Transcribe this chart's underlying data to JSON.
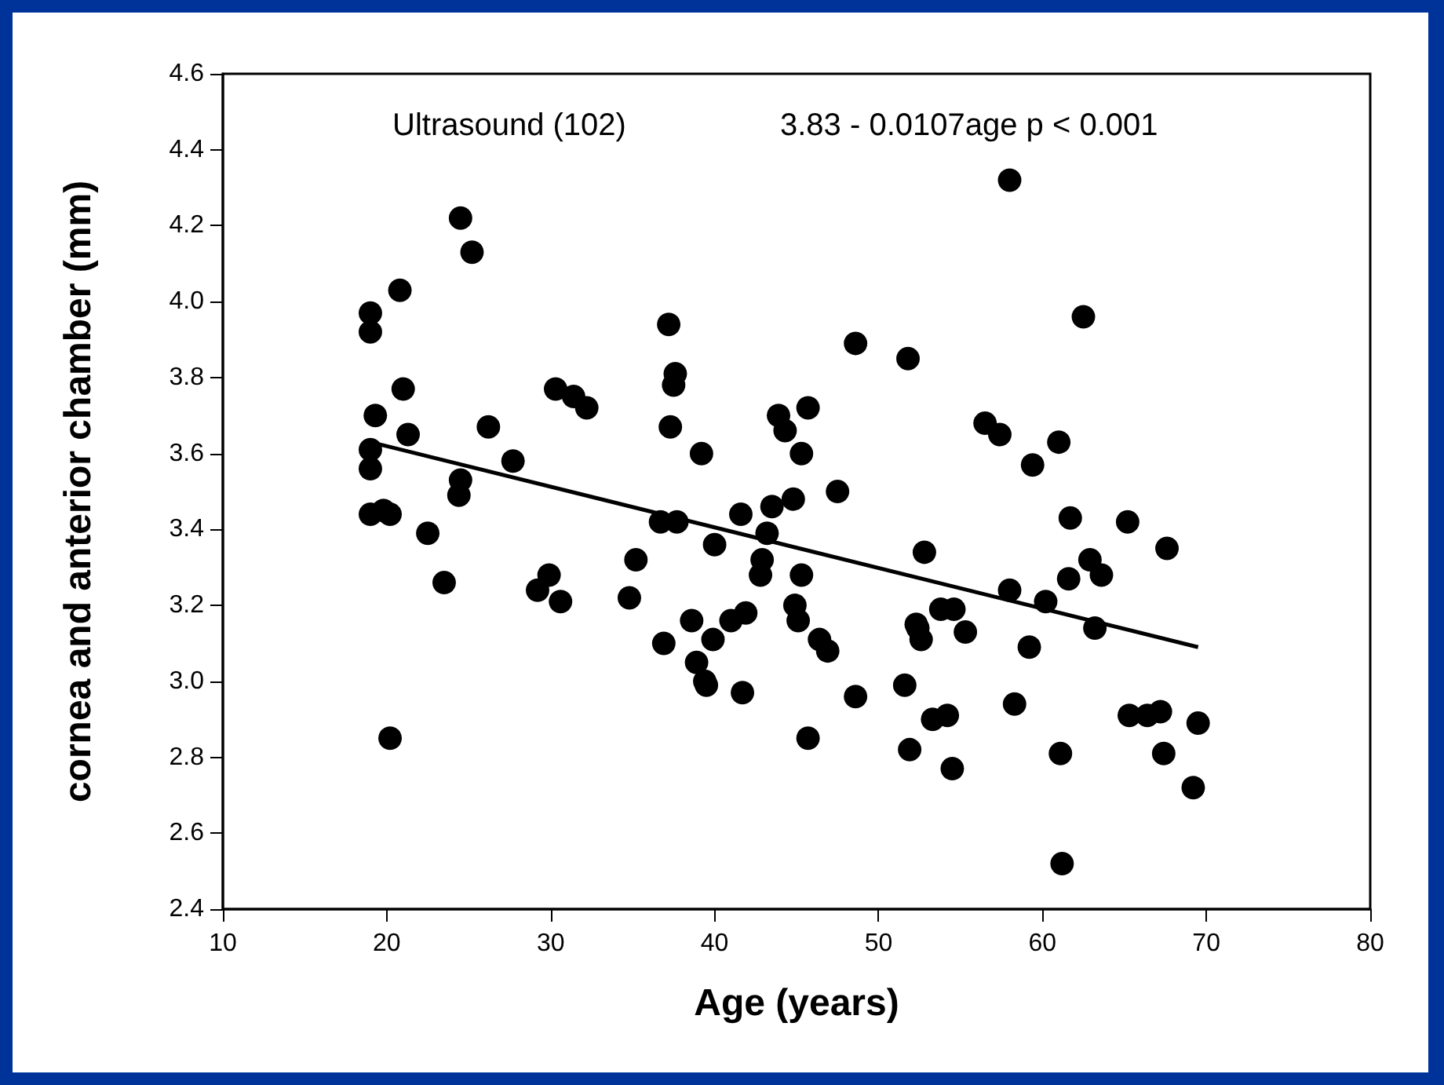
{
  "chart_data": {
    "type": "scatter",
    "xlabel": "Age (years)",
    "ylabel": "cornea and anterior chamber (mm)",
    "annotations": [
      "Ultrasound (102)",
      "3.83 - 0.0107age p < 0.001"
    ],
    "xlim": [
      10,
      80
    ],
    "xticks": [
      10,
      20,
      30,
      40,
      50,
      60,
      70,
      80
    ],
    "ylim": [
      2.4,
      4.6
    ],
    "yticks": [
      2.4,
      2.6,
      2.8,
      {
        "value": 3,
        "label": "3.0"
      },
      3.2,
      3.4,
      3.6,
      3.8,
      {
        "value": 4,
        "label": "4.0"
      },
      4.2,
      4.4,
      4.6
    ],
    "grid": false,
    "marker": "circle",
    "series": [
      {
        "color": "#000000",
        "x": [
          19,
          19,
          19,
          19,
          19,
          19.3,
          19.8,
          20.2,
          20.2,
          20.8,
          21,
          21.3,
          22.5,
          23.5,
          24.5,
          24.5,
          24.4,
          25.2,
          26.2,
          27.7,
          29.2,
          29.9,
          30.3,
          30.6,
          31.4,
          32.2,
          34.8,
          35.2,
          36.7,
          36.9,
          37.2,
          37.3,
          37.5,
          37.6,
          37.7,
          38.6,
          38.9,
          39.2,
          39.4,
          39.5,
          39.9,
          40,
          41,
          41.6,
          41.7,
          41.9,
          42.8,
          42.9,
          43.2,
          43.5,
          43.9,
          44.3,
          44.8,
          44.9,
          45.1,
          45.3,
          45.3,
          45.7,
          45.7,
          46.4,
          46.9,
          47.5,
          48.6,
          48.6,
          51.6,
          51.8,
          51.9,
          52.3,
          52.4,
          52.6,
          52.8,
          53.3,
          53.8,
          54.2,
          54.5,
          54.6,
          55.3,
          56.5,
          57.4,
          58,
          58.3,
          58,
          59.2,
          59.4,
          60.2,
          61,
          61.1,
          61.2,
          61.6,
          61.7,
          62.5,
          62.9,
          63.2,
          63.6,
          65.2,
          65.3,
          66.4,
          67.2,
          67.4,
          67.6,
          69.2,
          69.5
        ],
        "values": [
          3.97,
          3.92,
          3.61,
          3.56,
          3.44,
          3.7,
          3.45,
          3.44,
          2.85,
          4.03,
          3.77,
          3.65,
          3.39,
          3.26,
          4.22,
          3.53,
          3.49,
          4.13,
          3.67,
          3.58,
          3.24,
          3.28,
          3.77,
          3.21,
          3.75,
          3.72,
          3.22,
          3.32,
          3.42,
          3.1,
          3.94,
          3.67,
          3.78,
          3.81,
          3.42,
          3.16,
          3.05,
          3.6,
          3.0,
          2.99,
          3.11,
          3.36,
          3.16,
          3.44,
          2.97,
          3.18,
          3.28,
          3.32,
          3.39,
          3.46,
          3.7,
          3.66,
          3.48,
          3.2,
          3.16,
          3.6,
          3.28,
          3.72,
          2.85,
          3.11,
          3.08,
          3.5,
          3.89,
          2.96,
          2.99,
          3.85,
          2.82,
          3.15,
          3.14,
          3.11,
          3.34,
          2.9,
          3.19,
          2.91,
          2.77,
          3.19,
          3.13,
          3.68,
          3.65,
          3.24,
          2.94,
          4.32,
          3.09,
          3.57,
          3.21,
          3.63,
          2.81,
          2.52,
          3.27,
          3.43,
          3.96,
          3.32,
          3.14,
          3.28,
          3.42,
          2.91,
          2.91,
          2.92,
          2.81,
          3.35,
          2.72,
          2.89
        ]
      },
      {
        "type": "line",
        "color": "#000000",
        "marker": "none",
        "line_style": "solid",
        "x": [
          19,
          69.5
        ],
        "values": [
          3.63,
          3.09
        ]
      }
    ]
  }
}
